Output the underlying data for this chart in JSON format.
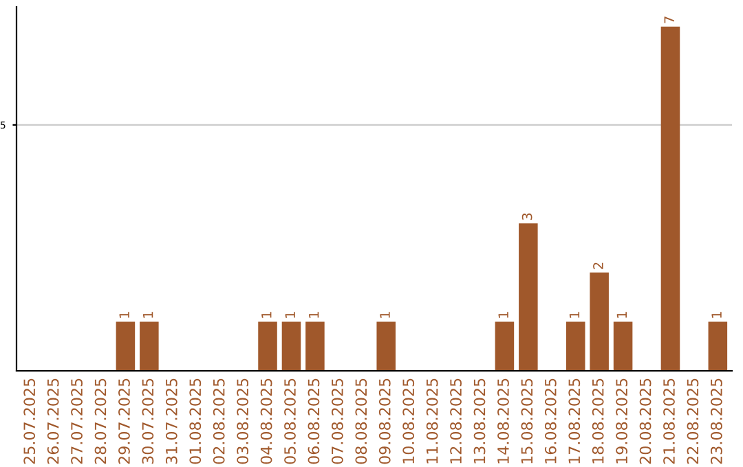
{
  "chart_data": {
    "type": "bar",
    "categories": [
      "25.07.2025",
      "26.07.2025",
      "27.07.2025",
      "28.07.2025",
      "29.07.2025",
      "30.07.2025",
      "31.07.2025",
      "01.08.2025",
      "02.08.2025",
      "03.08.2025",
      "04.08.2025",
      "05.08.2025",
      "06.08.2025",
      "07.08.2025",
      "08.08.2025",
      "09.08.2025",
      "10.08.2025",
      "11.08.2025",
      "12.08.2025",
      "13.08.2025",
      "14.08.2025",
      "15.08.2025",
      "16.08.2025",
      "17.08.2025",
      "18.08.2025",
      "19.08.2025",
      "20.08.2025",
      "21.08.2025",
      "22.08.2025",
      "23.08.2025"
    ],
    "values": [
      0,
      0,
      0,
      0,
      1,
      1,
      0,
      0,
      0,
      0,
      1,
      1,
      1,
      0,
      0,
      1,
      0,
      0,
      0,
      0,
      1,
      3,
      0,
      1,
      2,
      1,
      0,
      7,
      0,
      1
    ],
    "value_labels": [
      null,
      null,
      null,
      null,
      "1",
      "1",
      null,
      null,
      null,
      null,
      "1",
      "1",
      "1",
      null,
      null,
      "1",
      null,
      null,
      null,
      null,
      "1",
      "3",
      null,
      "1",
      "2",
      "1",
      null,
      "7",
      null,
      "1"
    ],
    "color": "#a0582b",
    "ylim": [
      0,
      7.4
    ],
    "yticks": [
      5
    ],
    "grid": "y"
  }
}
